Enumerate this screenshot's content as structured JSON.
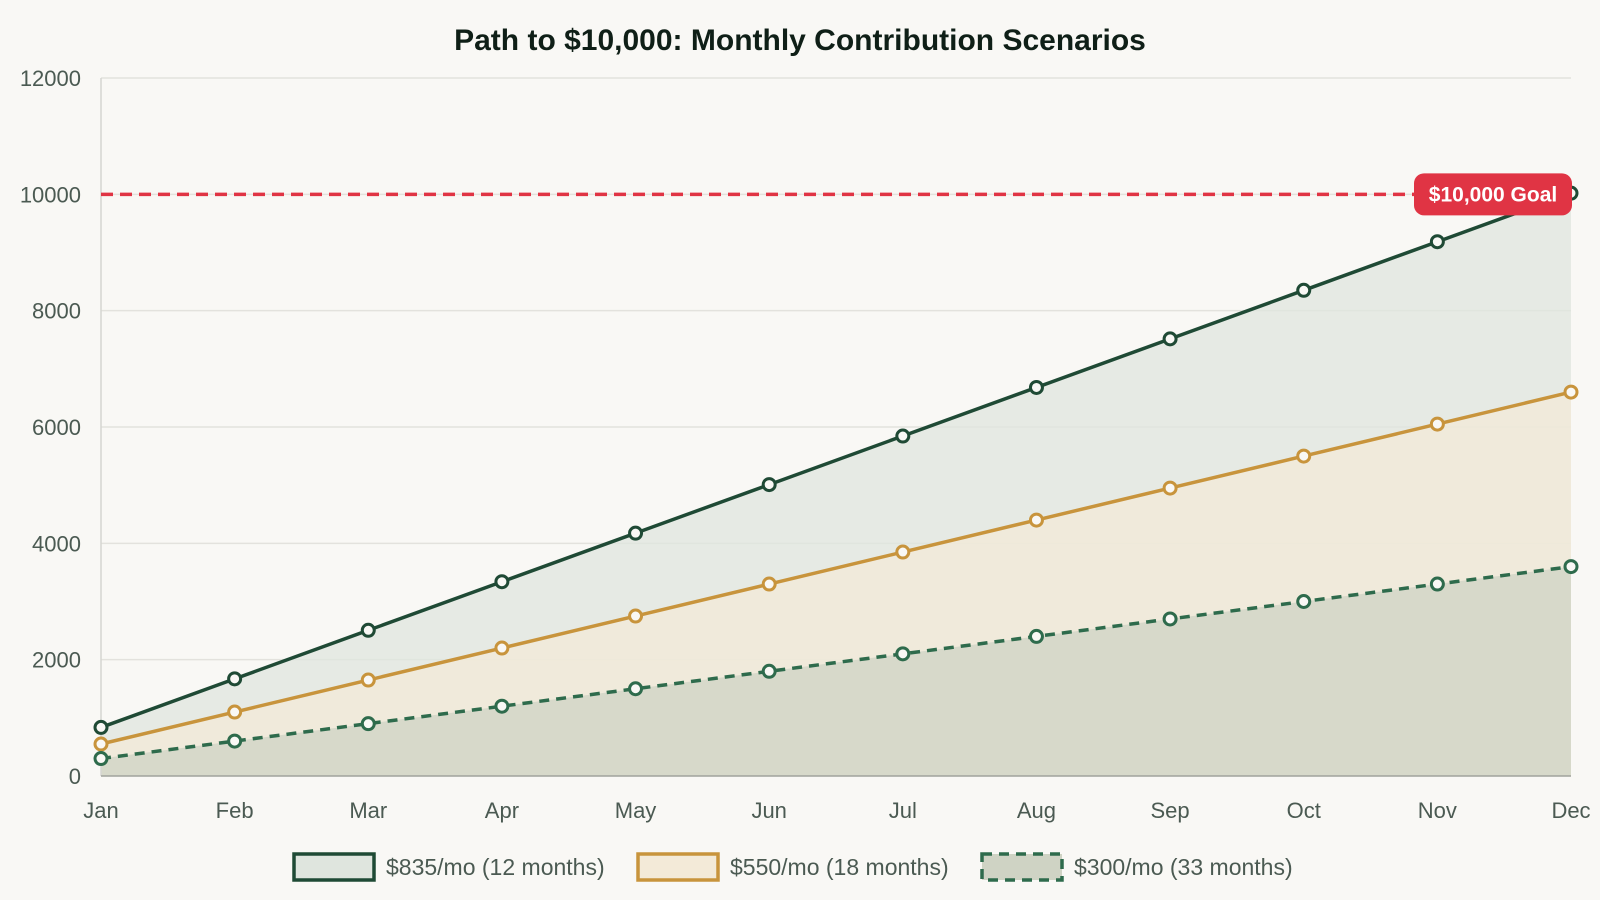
{
  "chart_data": {
    "type": "area",
    "title": "Path to $10,000: Monthly Contribution Scenarios",
    "xlabel": "",
    "ylabel": "",
    "categories": [
      "Jan",
      "Feb",
      "Mar",
      "Apr",
      "May",
      "Jun",
      "Jul",
      "Aug",
      "Sep",
      "Oct",
      "Nov",
      "Dec"
    ],
    "ylim": [
      0,
      12000
    ],
    "yticks": [
      0,
      2000,
      4000,
      6000,
      8000,
      10000,
      12000
    ],
    "ytick_labels": [
      "0",
      "2000",
      "4000",
      "6000",
      "8000",
      "10000",
      "12000"
    ],
    "grid": true,
    "legend_position": "bottom",
    "series": [
      {
        "name": "$835/mo (12 months)",
        "values": [
          835,
          1670,
          2505,
          3340,
          4175,
          5010,
          5845,
          6680,
          7515,
          8350,
          9185,
          10020
        ],
        "color": "#1f4a35",
        "fill": "#dfe5de",
        "line_style": "solid"
      },
      {
        "name": "$550/mo (18 months)",
        "values": [
          550,
          1100,
          1650,
          2200,
          2750,
          3300,
          3850,
          4400,
          4950,
          5500,
          6050,
          6600
        ],
        "color": "#c8943c",
        "fill": "#f3ead8",
        "line_style": "solid"
      },
      {
        "name": "$300/mo (33 months)",
        "values": [
          300,
          600,
          900,
          1200,
          1500,
          1800,
          2100,
          2400,
          2700,
          3000,
          3300,
          3600
        ],
        "color": "#2e6b4c",
        "fill": "#cfd3c4",
        "line_style": "dashed"
      }
    ],
    "annotations": [
      {
        "type": "horizontal-line",
        "y": 10000,
        "label": "$10,000 Goal",
        "color": "#e03444",
        "line_style": "dashed"
      }
    ]
  },
  "colors": {
    "background": "#f9f8f5",
    "grid": "#e3e2dd",
    "axis": "#a0a39c",
    "goal": "#e03444"
  }
}
